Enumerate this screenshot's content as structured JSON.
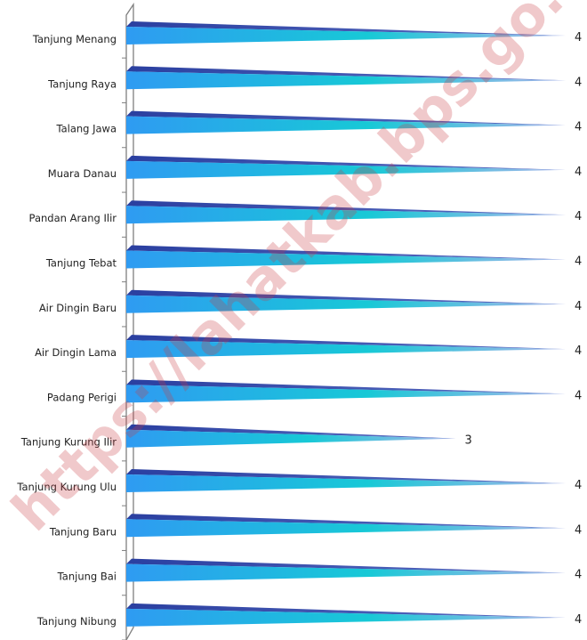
{
  "watermark": "https://lahatkab.bps.go.id",
  "chart_data": {
    "type": "bar",
    "orientation": "horizontal",
    "title": "",
    "xlabel": "",
    "ylabel": "",
    "xlim": [
      0,
      4
    ],
    "grid": false,
    "legend": "none",
    "categories": [
      "Tanjung Menang",
      "Tanjung Raya",
      "Talang Jawa",
      "Muara Danau",
      "Pandan Arang Ilir",
      "Tanjung Tebat",
      "Air Dingin Baru",
      "Air Dingin Lama",
      "Padang Perigi",
      "Tanjung Kurung Ilir",
      "Tanjung Kurung Ulu",
      "Tanjung Baru",
      "Tanjung Bai",
      "Tanjung Nibung"
    ],
    "values": [
      4,
      4,
      4,
      4,
      4,
      4,
      4,
      4,
      4,
      3,
      4,
      4,
      4,
      4
    ],
    "colors": {
      "bar_start": "#2f9bf2",
      "bar_mid": "#17c9d6",
      "bar_end": "#9db0e6",
      "bar_top": "#2a3fa0",
      "axis": "#7f7f7f"
    }
  }
}
